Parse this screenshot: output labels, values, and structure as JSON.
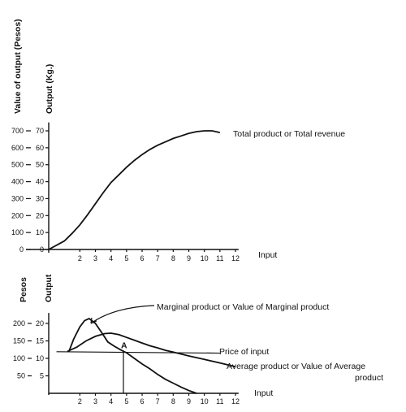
{
  "chart_data": [
    {
      "type": "line",
      "y_label_left": "Value of output (Pesos)",
      "y_label_right": "Output (Kg.)",
      "xlabel": "Input",
      "x_ticks": [
        "2",
        "3",
        "4",
        "5",
        "6",
        "7",
        "8",
        "9",
        "10",
        "11",
        "12"
      ],
      "y_ticks_left": [
        "0",
        "100",
        "200",
        "300",
        "400",
        "500",
        "600",
        "700"
      ],
      "y_ticks_right": [
        "0",
        "10",
        "20",
        "30",
        "40",
        "50",
        "60",
        "70"
      ],
      "xlim": [
        0,
        12.5
      ],
      "ylim": [
        0,
        75
      ],
      "series": [
        {
          "name": "Total product or Total revenue",
          "x": [
            0,
            1,
            1.5,
            2,
            2.5,
            3,
            3.5,
            4,
            4.5,
            5,
            5.5,
            6,
            6.5,
            7,
            7.5,
            8,
            8.5,
            9,
            9.5,
            10,
            10.5,
            11
          ],
          "y": [
            0,
            5,
            9.5,
            14.5,
            20.5,
            27,
            33.5,
            39.5,
            44,
            48.5,
            52.5,
            56,
            59,
            61.5,
            63.5,
            65.5,
            67,
            68.5,
            69.5,
            70,
            70,
            69
          ]
        }
      ]
    },
    {
      "type": "line",
      "y_label_left": "Pesos",
      "y_label_right": "Output",
      "xlabel": "Input",
      "x_ticks": [
        "2",
        "3",
        "4",
        "5",
        "6",
        "7",
        "8",
        "9",
        "10",
        "11",
        "12"
      ],
      "y_ticks_left": [
        "50",
        "100",
        "150",
        "200"
      ],
      "y_ticks_right": [
        "5",
        "10",
        "15",
        "20"
      ],
      "xlim": [
        0,
        12.5
      ],
      "ylim": [
        0,
        23
      ],
      "point_label": "A",
      "point_label_x": 4.8,
      "point_label_y": 12,
      "series": [
        {
          "name": "Marginal product or Value of Marginal product",
          "x": [
            1.3,
            1.6,
            2.0,
            2.3,
            2.6,
            3.0,
            3.4,
            3.8,
            4.2,
            4.6,
            5.0,
            5.5,
            6.0,
            6.5,
            7.0,
            7.5,
            8.0,
            8.5,
            9.0,
            9.5
          ],
          "y": [
            12,
            15.5,
            19,
            20.8,
            21.4,
            20,
            17.4,
            14.7,
            13.5,
            12.5,
            11.6,
            10,
            8.4,
            7,
            5.4,
            4,
            2.9,
            1.8,
            0.8,
            0
          ]
        },
        {
          "name": "Average product or Value of Average product",
          "x": [
            1.2,
            1.8,
            2.4,
            3.0,
            3.6,
            4.0,
            4.5,
            5.0,
            5.5,
            6.0,
            6.5,
            7.0,
            7.5,
            8.0,
            9.0,
            10.0,
            11.0,
            12.0
          ],
          "y": [
            12,
            13.2,
            15,
            16.3,
            17.1,
            17.2,
            16.8,
            16,
            15.2,
            14.4,
            13.6,
            13,
            12.3,
            11.8,
            10.7,
            9.7,
            8.7,
            7.6
          ]
        },
        {
          "name": "Price of input",
          "x": [
            0.5,
            11
          ],
          "y": [
            11.9,
            11.5
          ]
        }
      ]
    }
  ]
}
